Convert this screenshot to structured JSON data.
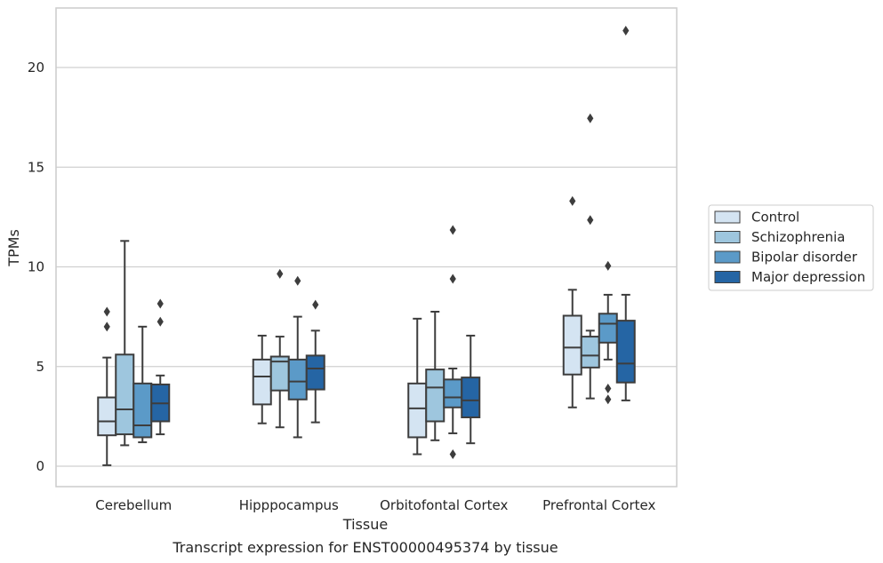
{
  "chart_data": {
    "type": "box",
    "title": "",
    "caption": "Transcript expression for ENST00000495374 by tissue",
    "xlabel": "Tissue",
    "ylabel": "TPMs",
    "ylim": [
      -1,
      23
    ],
    "yticks": [
      0,
      5,
      10,
      15,
      20
    ],
    "grid": "horizontal",
    "legend_position": "right",
    "categories": [
      "Cerebellum",
      "Hipppocampus",
      "Orbitofontal Cortex",
      "Prefrontal Cortex"
    ],
    "series": [
      {
        "name": "Control",
        "color": "#d4e4f2",
        "boxes": [
          {
            "whislo": 0.05,
            "q1": 1.55,
            "med": 2.25,
            "q3": 3.45,
            "whishi": 5.45,
            "fliers": [
              7.0,
              7.75
            ]
          },
          {
            "whislo": 2.15,
            "q1": 3.1,
            "med": 4.5,
            "q3": 5.35,
            "whishi": 6.55,
            "fliers": []
          },
          {
            "whislo": 0.6,
            "q1": 1.45,
            "med": 2.9,
            "q3": 4.15,
            "whishi": 7.4,
            "fliers": []
          },
          {
            "whislo": 2.95,
            "q1": 4.6,
            "med": 5.95,
            "q3": 7.55,
            "whishi": 8.85,
            "fliers": [
              13.3
            ]
          }
        ]
      },
      {
        "name": "Schizophrenia",
        "color": "#9ec6de",
        "boxes": [
          {
            "whislo": 1.05,
            "q1": 1.6,
            "med": 2.85,
            "q3": 5.6,
            "whishi": 11.3,
            "fliers": []
          },
          {
            "whislo": 1.95,
            "q1": 3.8,
            "med": 5.25,
            "q3": 5.5,
            "whishi": 6.5,
            "fliers": [
              9.65
            ]
          },
          {
            "whislo": 1.3,
            "q1": 2.25,
            "med": 3.95,
            "q3": 4.85,
            "whishi": 7.75,
            "fliers": []
          },
          {
            "whislo": 3.4,
            "q1": 4.95,
            "med": 5.55,
            "q3": 6.5,
            "whishi": 6.8,
            "fliers": [
              12.35,
              17.45
            ]
          }
        ]
      },
      {
        "name": "Bipolar disorder",
        "color": "#5b9ac8",
        "boxes": [
          {
            "whislo": 1.2,
            "q1": 1.45,
            "med": 2.05,
            "q3": 4.15,
            "whishi": 7.0,
            "fliers": []
          },
          {
            "whislo": 1.45,
            "q1": 3.35,
            "med": 4.25,
            "q3": 5.35,
            "whishi": 7.5,
            "fliers": [
              9.3
            ]
          },
          {
            "whislo": 1.65,
            "q1": 2.95,
            "med": 3.45,
            "q3": 4.35,
            "whishi": 4.9,
            "fliers": [
              0.6,
              9.4,
              11.85
            ]
          },
          {
            "whislo": 5.35,
            "q1": 6.2,
            "med": 7.15,
            "q3": 7.65,
            "whishi": 8.6,
            "fliers": [
              3.35,
              3.9,
              10.05
            ]
          }
        ]
      },
      {
        "name": "Major depression",
        "color": "#2565a4",
        "boxes": [
          {
            "whislo": 1.6,
            "q1": 2.25,
            "med": 3.15,
            "q3": 4.1,
            "whishi": 4.55,
            "fliers": [
              7.25,
              8.15
            ]
          },
          {
            "whislo": 2.2,
            "q1": 3.85,
            "med": 4.9,
            "q3": 5.55,
            "whishi": 6.8,
            "fliers": [
              8.1
            ]
          },
          {
            "whislo": 1.15,
            "q1": 2.45,
            "med": 3.3,
            "q3": 4.45,
            "whishi": 6.55,
            "fliers": []
          },
          {
            "whislo": 3.3,
            "q1": 4.2,
            "med": 5.15,
            "q3": 7.3,
            "whishi": 8.6,
            "fliers": [
              21.85
            ]
          }
        ]
      }
    ]
  }
}
